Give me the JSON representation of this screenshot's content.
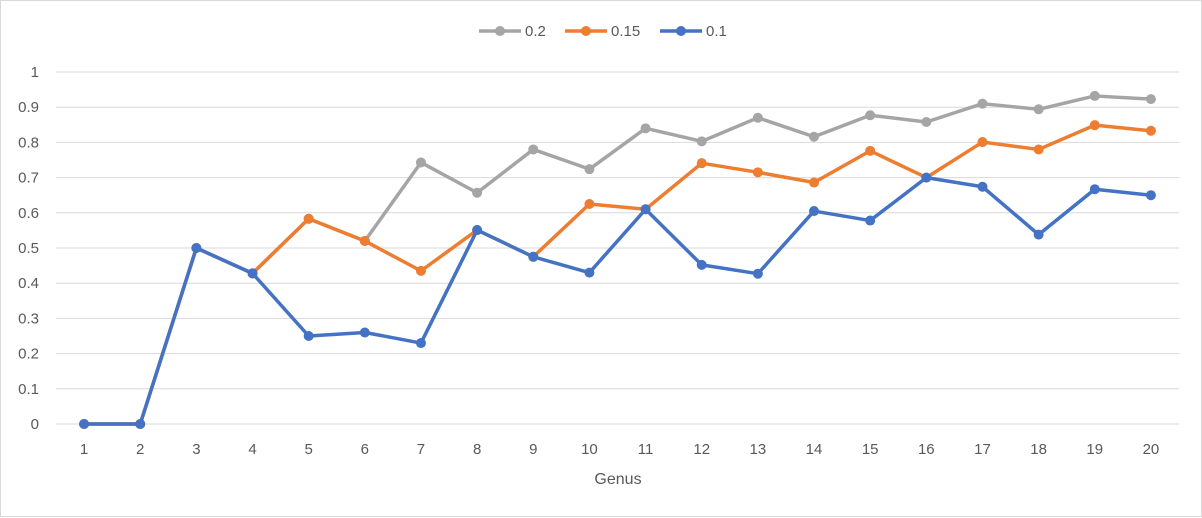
{
  "chart_data": {
    "type": "line",
    "title": "",
    "xlabel": "Genus",
    "ylabel": "",
    "ylim": [
      0,
      1
    ],
    "y_ticks": [
      "0",
      "0.1",
      "0.2",
      "0.3",
      "0.4",
      "0.5",
      "0.6",
      "0.7",
      "0.8",
      "0.9",
      "1"
    ],
    "categories": [
      "1",
      "2",
      "3",
      "4",
      "5",
      "6",
      "7",
      "8",
      "9",
      "10",
      "11",
      "12",
      "13",
      "14",
      "15",
      "16",
      "17",
      "18",
      "19",
      "20"
    ],
    "grid": true,
    "legend_position": "top",
    "series": [
      {
        "name": "0.2",
        "color": "#a5a5a5",
        "values": [
          0,
          0,
          0.5,
          0.428,
          0.583,
          0.52,
          0.743,
          0.657,
          0.78,
          0.724,
          0.84,
          0.803,
          0.87,
          0.816,
          0.877,
          0.858,
          0.91,
          0.894,
          0.932,
          0.923
        ]
      },
      {
        "name": "0.15",
        "color": "#ed7d31",
        "values": [
          0,
          0,
          0.5,
          0.428,
          0.583,
          0.52,
          0.435,
          0.551,
          0.475,
          0.625,
          0.61,
          0.741,
          0.715,
          0.686,
          0.776,
          0.7,
          0.801,
          0.78,
          0.849,
          0.833
        ]
      },
      {
        "name": "0.1",
        "color": "#4472c4",
        "values": [
          0,
          0,
          0.5,
          0.428,
          0.25,
          0.26,
          0.23,
          0.551,
          0.475,
          0.43,
          0.61,
          0.452,
          0.427,
          0.605,
          0.578,
          0.7,
          0.674,
          0.538,
          0.667,
          0.65
        ]
      }
    ]
  }
}
